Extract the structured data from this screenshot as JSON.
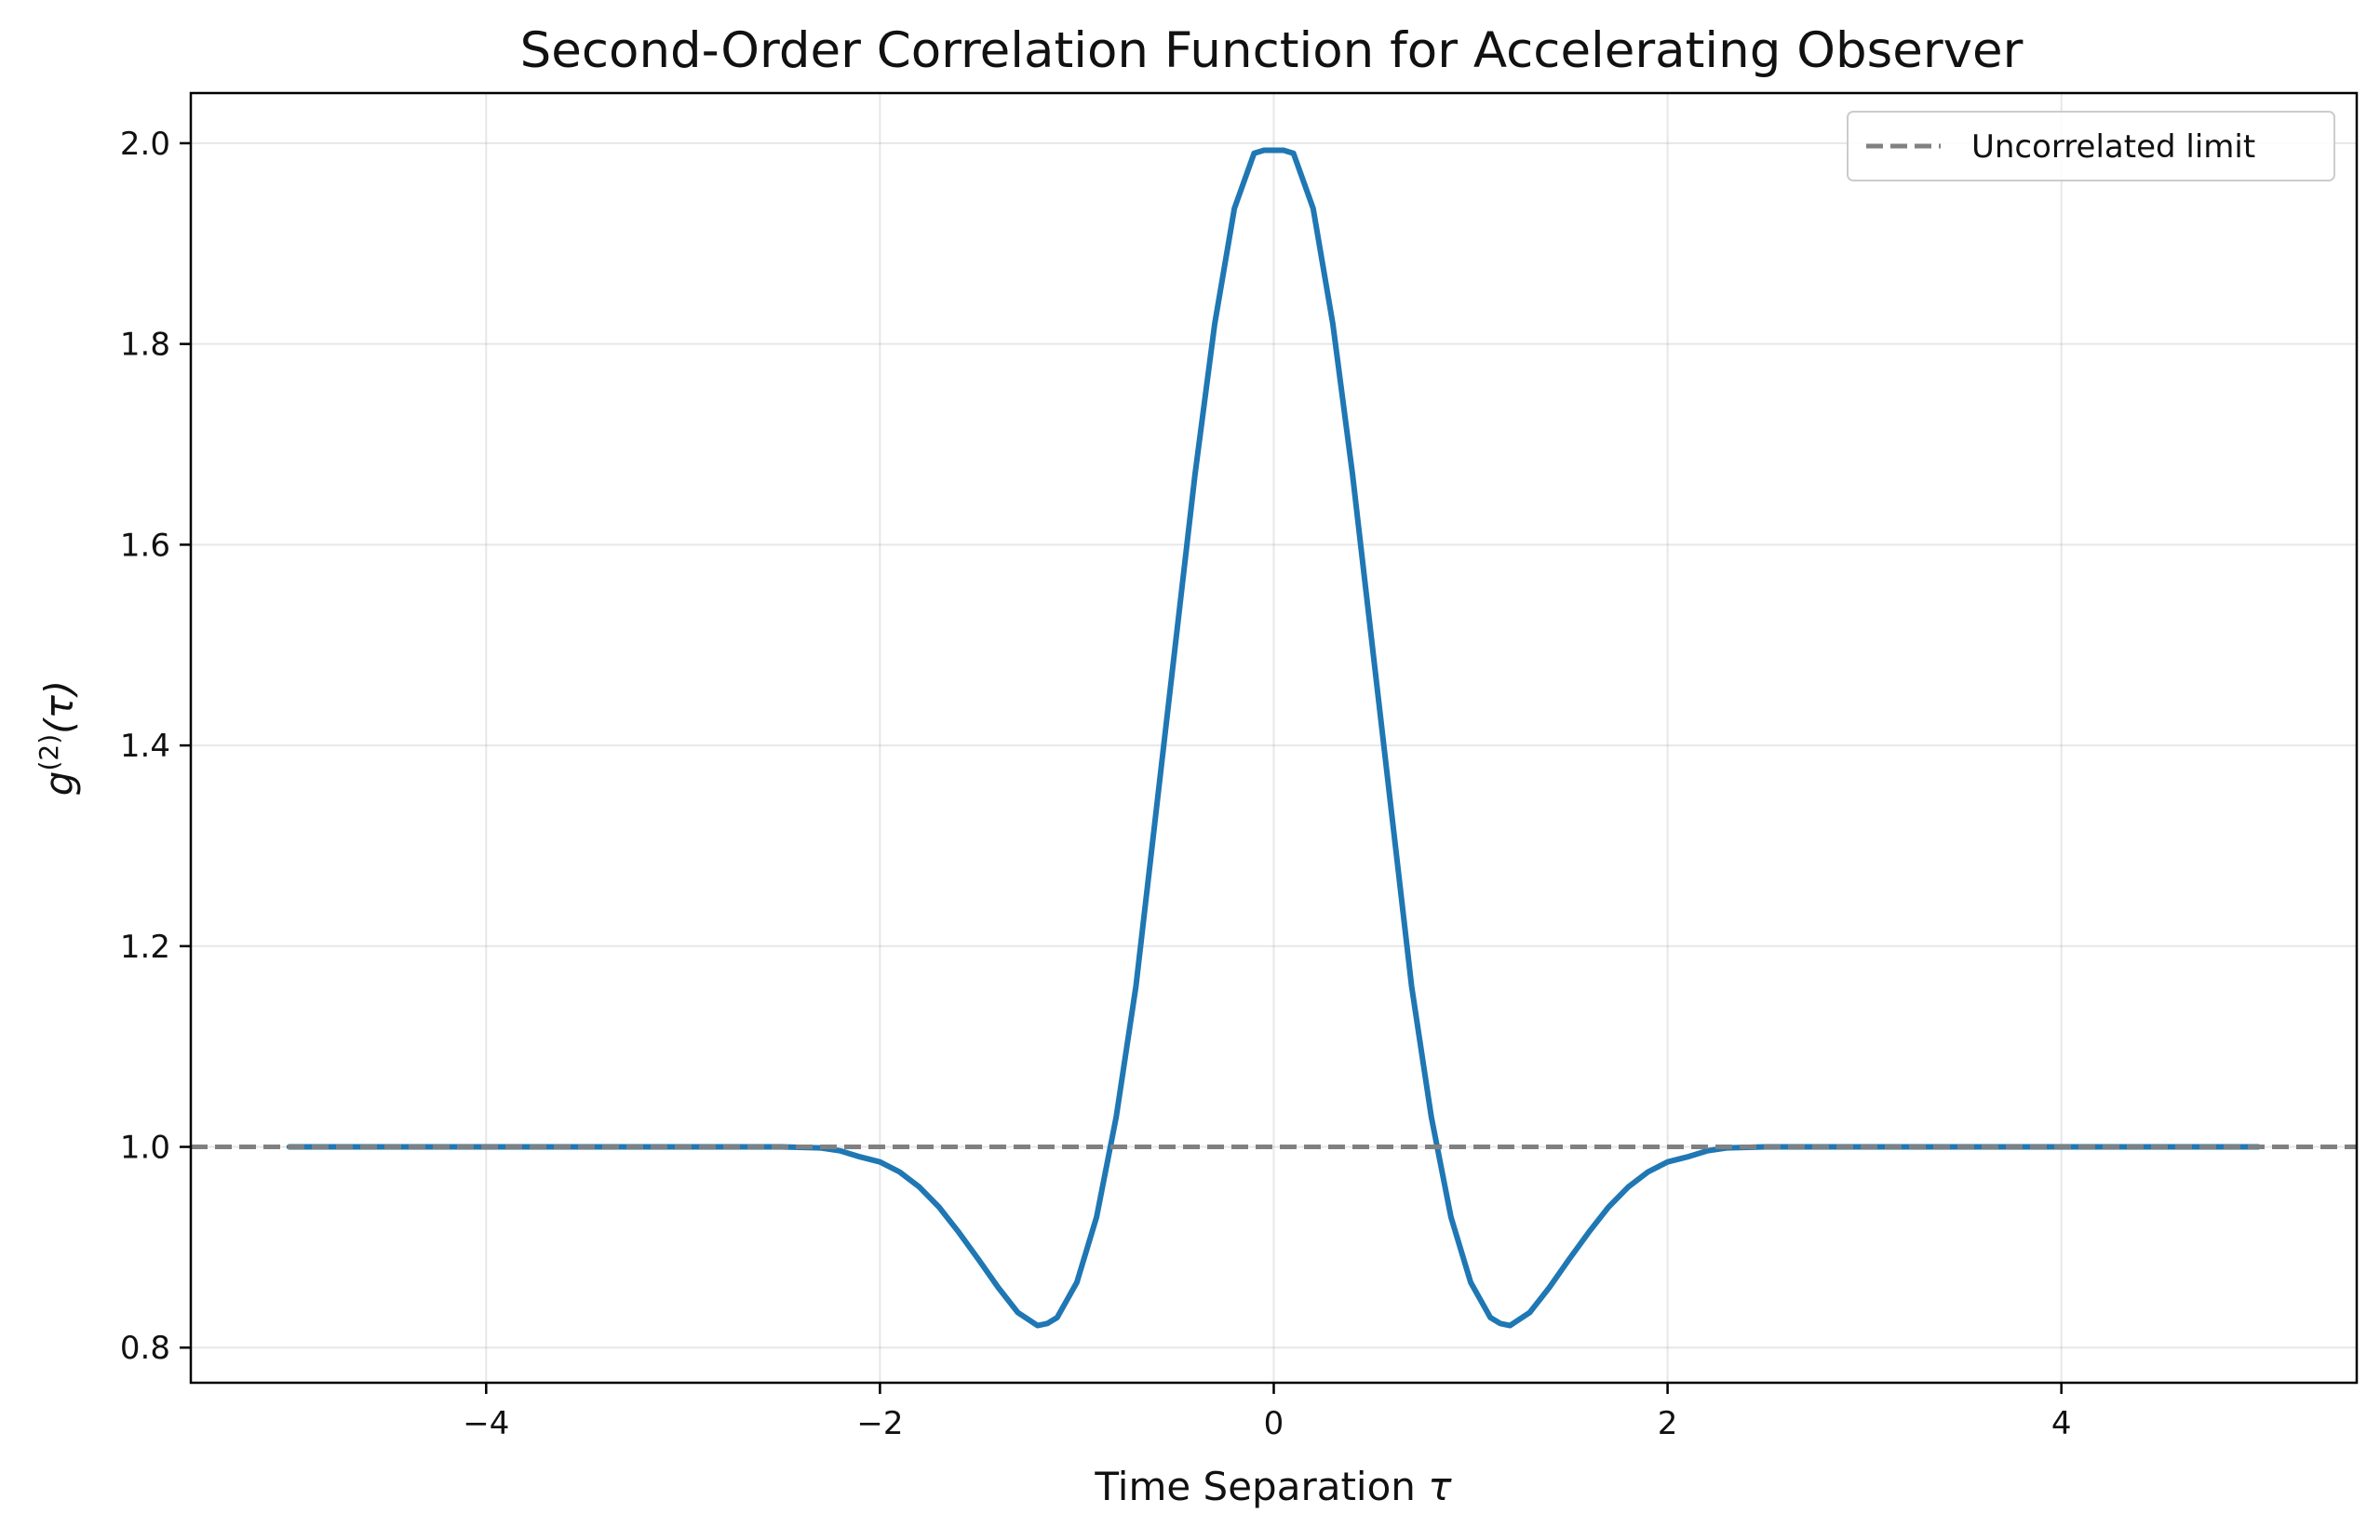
{
  "chart_data": {
    "type": "line",
    "title": "Second-Order Correlation Function for Accelerating Observer",
    "xlabel_text": "Time Separation ",
    "xlabel_symbol": "τ",
    "ylabel": "g⁽²⁾(τ)",
    "ylabel_parts": {
      "g": "g",
      "sup": "(2)",
      "arg": "(τ)"
    },
    "xlim": [
      -5.5,
      5.5
    ],
    "ylim": [
      0.765,
      2.05
    ],
    "x_ticks": [
      -4,
      -2,
      0,
      2,
      4
    ],
    "x_tick_labels": [
      "−4",
      "−2",
      "0",
      "2",
      "4"
    ],
    "y_ticks": [
      0.8,
      1.0,
      1.2,
      1.4,
      1.6,
      1.8,
      2.0
    ],
    "y_tick_labels": [
      "0.8",
      "1.0",
      "1.2",
      "1.4",
      "1.6",
      "1.8",
      "2.0"
    ],
    "grid": true,
    "legend_position": "top-right",
    "series": [
      {
        "name": "g2",
        "color": "#1f77b4",
        "style": "solid",
        "x": [
          -5.0,
          -4.5,
          -4.0,
          -3.5,
          -3.0,
          -2.5,
          -2.3,
          -2.2,
          -2.1,
          -2.0,
          -1.9,
          -1.8,
          -1.7,
          -1.6,
          -1.5,
          -1.4,
          -1.3,
          -1.2,
          -1.15,
          -1.1,
          -1.0,
          -0.9,
          -0.8,
          -0.7,
          -0.6,
          -0.5,
          -0.4,
          -0.3,
          -0.2,
          -0.1,
          -0.05,
          0.05,
          0.1,
          0.2,
          0.3,
          0.4,
          0.5,
          0.6,
          0.7,
          0.8,
          0.9,
          1.0,
          1.1,
          1.15,
          1.2,
          1.3,
          1.4,
          1.5,
          1.6,
          1.7,
          1.8,
          1.9,
          2.0,
          2.1,
          2.2,
          2.3,
          2.5,
          3.0,
          3.5,
          4.0,
          4.5,
          5.0
        ],
        "y": [
          1.0,
          1.0,
          1.0,
          1.0,
          1.0,
          1.0,
          0.999,
          0.996,
          0.99,
          0.985,
          0.975,
          0.96,
          0.94,
          0.915,
          0.888,
          0.86,
          0.835,
          0.822,
          0.824,
          0.83,
          0.865,
          0.93,
          1.03,
          1.16,
          1.33,
          1.5,
          1.67,
          1.82,
          1.935,
          1.99,
          1.993,
          1.993,
          1.99,
          1.935,
          1.82,
          1.67,
          1.5,
          1.33,
          1.16,
          1.03,
          0.93,
          0.865,
          0.83,
          0.824,
          0.822,
          0.835,
          0.86,
          0.888,
          0.915,
          0.94,
          0.96,
          0.975,
          0.985,
          0.99,
          0.996,
          0.999,
          1.0,
          1.0,
          1.0,
          1.0,
          1.0,
          1.0
        ]
      },
      {
        "name": "Uncorrelated limit",
        "color": "#808080",
        "style": "dashed",
        "y_const": 1.0
      }
    ],
    "legend": [
      {
        "label": "Uncorrelated limit",
        "color": "#808080",
        "style": "dashed"
      }
    ]
  }
}
